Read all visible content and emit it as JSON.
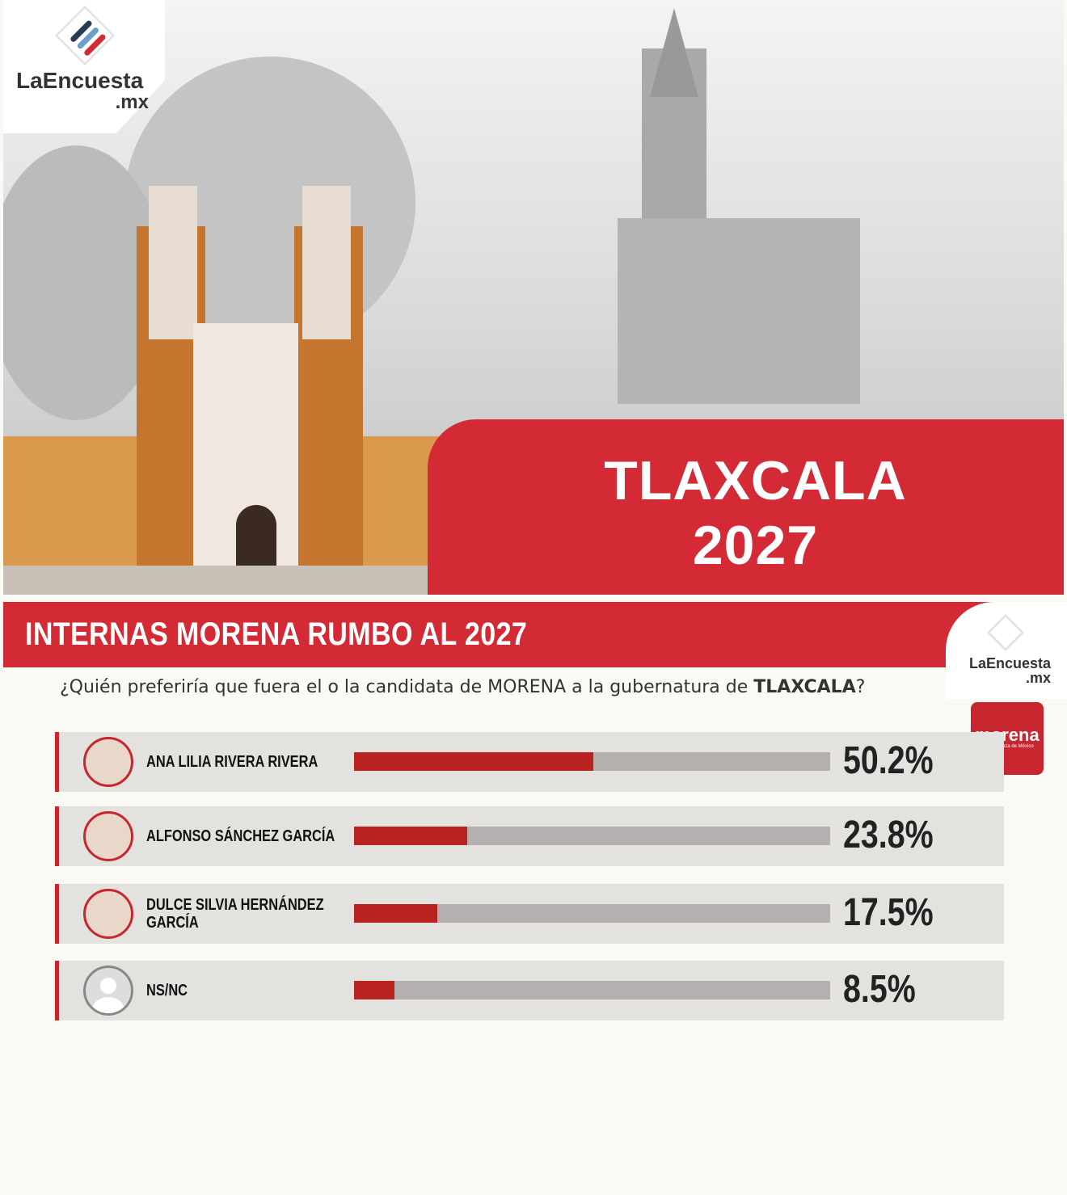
{
  "brand": {
    "name": "LaEncuesta",
    "suffix": ".mx"
  },
  "hero": {
    "title_line1": "TLAXCALA",
    "title_line2": "2027"
  },
  "header": {
    "title": "INTERNAS MORENA RUMBO AL 2027"
  },
  "question": {
    "text": "¿Quién preferiría que fuera el o la candidata de MORENA a la gubernatura de ",
    "emphasis": "TLAXCALA",
    "end": "?"
  },
  "party_badge": {
    "name": "morena",
    "tagline": "La esperanza de México"
  },
  "colors": {
    "accent": "#d42a35",
    "bar_fill": "#b8231f",
    "bar_track": "#b5b0b0"
  },
  "chart_data": {
    "type": "bar",
    "orientation": "horizontal",
    "categories": [
      "ANA LILIA RIVERA RIVERA",
      "ALFONSO SÁNCHEZ GARCÍA",
      "DULCE SILVIA HERNÁNDEZ GARCÍA",
      "NS/NC"
    ],
    "values": [
      50.2,
      23.8,
      17.5,
      8.5
    ],
    "labels": [
      "50.2%",
      "23.8%",
      "17.5%",
      "8.5%"
    ],
    "xlim": [
      0,
      100
    ],
    "title": "INTERNAS MORENA RUMBO AL 2027"
  }
}
